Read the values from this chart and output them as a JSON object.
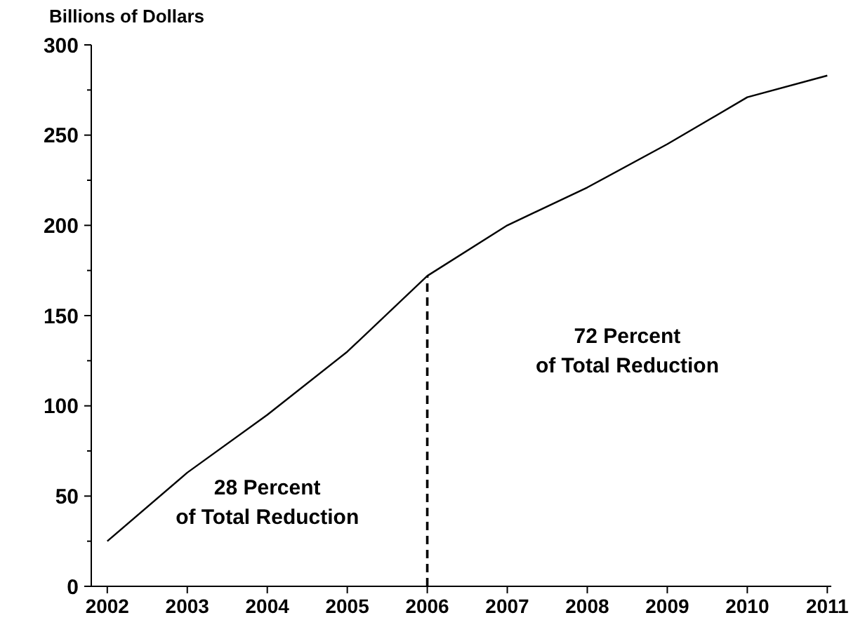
{
  "chart_data": {
    "type": "line",
    "ylabel": "Billions of Dollars",
    "x": [
      2002,
      2003,
      2004,
      2005,
      2006,
      2007,
      2008,
      2009,
      2010,
      2011
    ],
    "series": [
      {
        "color": "#000000",
        "values": [
          25,
          63,
          95,
          130,
          172,
          200,
          221,
          245,
          271,
          283
        ]
      }
    ],
    "xlim": [
      2001.8,
      2011.05
    ],
    "xticks": [
      2002,
      2003,
      2004,
      2005,
      2006,
      2007,
      2008,
      2009,
      2010,
      2011
    ],
    "ylim": [
      0,
      300
    ],
    "yticks": [
      0,
      {
        "value": 25,
        "label": null
      },
      50,
      {
        "value": 75,
        "label": null
      },
      100,
      {
        "value": 125,
        "label": null
      },
      150,
      {
        "value": 175,
        "label": null
      },
      200,
      {
        "value": 225,
        "label": null
      },
      250,
      {
        "value": 275,
        "label": null
      },
      300
    ],
    "ref_lines": [
      {
        "axis": "x",
        "value": 2006,
        "line_style": "dashed",
        "color": "#000000"
      }
    ],
    "annotations": [
      "28 Percent\nof Total Reduction",
      "72 Percent\nof Total Reduction"
    ],
    "marker": "none",
    "line_style": "solid"
  }
}
